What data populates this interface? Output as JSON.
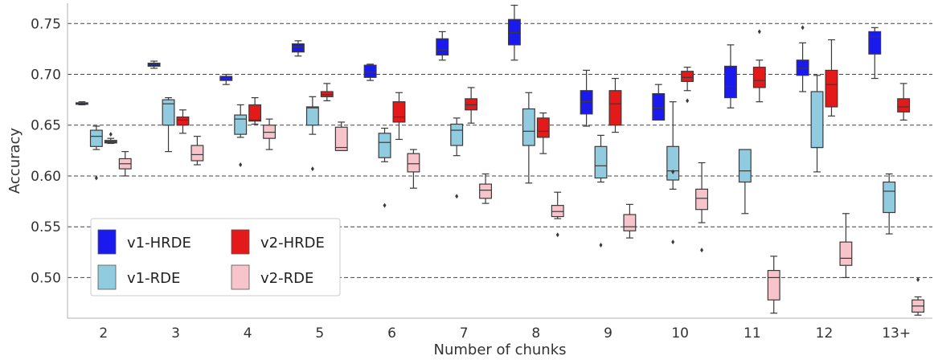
{
  "chart_data": {
    "type": "box",
    "xlabel": "Number of chunks",
    "ylabel": "Accuracy",
    "ylim": [
      0.46,
      0.77
    ],
    "yticks": [
      0.5,
      0.55,
      0.6,
      0.65,
      0.7,
      0.75
    ],
    "grid": "horizontal dashed",
    "legend_position": "lower-left",
    "categories": [
      "2",
      "3",
      "4",
      "5",
      "6",
      "7",
      "8",
      "9",
      "10",
      "11",
      "12",
      "13+"
    ],
    "series": [
      {
        "name": "v1-HRDE",
        "color": "#1a1aee",
        "boxes": [
          {
            "whislo": 0.67,
            "q1": 0.6705,
            "med": 0.671,
            "q3": 0.672,
            "whishi": 0.673,
            "fliers": []
          },
          {
            "whislo": 0.706,
            "q1": 0.708,
            "med": 0.71,
            "q3": 0.711,
            "whishi": 0.713,
            "fliers": []
          },
          {
            "whislo": 0.69,
            "q1": 0.694,
            "med": 0.696,
            "q3": 0.698,
            "whishi": 0.7,
            "fliers": []
          },
          {
            "whislo": 0.718,
            "q1": 0.722,
            "med": 0.727,
            "q3": 0.73,
            "whishi": 0.733,
            "fliers": []
          },
          {
            "whislo": 0.694,
            "q1": 0.697,
            "med": 0.702,
            "q3": 0.709,
            "whishi": 0.71,
            "fliers": []
          },
          {
            "whislo": 0.714,
            "q1": 0.719,
            "med": 0.724,
            "q3": 0.735,
            "whishi": 0.742,
            "fliers": []
          },
          {
            "whislo": 0.714,
            "q1": 0.729,
            "med": 0.741,
            "q3": 0.754,
            "whishi": 0.768,
            "fliers": []
          },
          {
            "whislo": 0.649,
            "q1": 0.661,
            "med": 0.673,
            "q3": 0.684,
            "whishi": 0.704,
            "fliers": []
          },
          {
            "whislo": 0.655,
            "q1": 0.655,
            "med": 0.667,
            "q3": 0.681,
            "whishi": 0.69,
            "fliers": []
          },
          {
            "whislo": 0.667,
            "q1": 0.677,
            "med": 0.688,
            "q3": 0.708,
            "whishi": 0.729,
            "fliers": []
          },
          {
            "whislo": 0.683,
            "q1": 0.699,
            "med": 0.706,
            "q3": 0.714,
            "whishi": 0.731,
            "fliers": [
              0.746
            ]
          },
          {
            "whislo": 0.696,
            "q1": 0.72,
            "med": 0.737,
            "q3": 0.742,
            "whishi": 0.746,
            "fliers": []
          }
        ]
      },
      {
        "name": "v1-RDE",
        "color": "#91cbe0",
        "boxes": [
          {
            "whislo": 0.626,
            "q1": 0.629,
            "med": 0.639,
            "q3": 0.645,
            "whishi": 0.649,
            "fliers": [
              0.598
            ]
          },
          {
            "whislo": 0.624,
            "q1": 0.65,
            "med": 0.671,
            "q3": 0.675,
            "whishi": 0.677,
            "fliers": []
          },
          {
            "whislo": 0.638,
            "q1": 0.641,
            "med": 0.656,
            "q3": 0.66,
            "whishi": 0.67,
            "fliers": [
              0.611
            ]
          },
          {
            "whislo": 0.641,
            "q1": 0.65,
            "med": 0.667,
            "q3": 0.668,
            "whishi": 0.678,
            "fliers": [
              0.607
            ]
          },
          {
            "whislo": 0.614,
            "q1": 0.618,
            "med": 0.633,
            "q3": 0.642,
            "whishi": 0.647,
            "fliers": [
              0.571
            ]
          },
          {
            "whislo": 0.62,
            "q1": 0.63,
            "med": 0.645,
            "q3": 0.651,
            "whishi": 0.657,
            "fliers": [
              0.58
            ]
          },
          {
            "whislo": 0.593,
            "q1": 0.63,
            "med": 0.644,
            "q3": 0.666,
            "whishi": 0.682,
            "fliers": []
          },
          {
            "whislo": 0.594,
            "q1": 0.598,
            "med": 0.61,
            "q3": 0.629,
            "whishi": 0.64,
            "fliers": [
              0.532
            ]
          },
          {
            "whislo": 0.587,
            "q1": 0.596,
            "med": 0.605,
            "q3": 0.629,
            "whishi": 0.673,
            "fliers": [
              0.535,
              0.604
            ]
          },
          {
            "whislo": 0.563,
            "q1": 0.594,
            "med": 0.605,
            "q3": 0.626,
            "whishi": 0.626,
            "fliers": []
          },
          {
            "whislo": 0.604,
            "q1": 0.628,
            "med": 0.628,
            "q3": 0.683,
            "whishi": 0.699,
            "fliers": []
          },
          {
            "whislo": 0.543,
            "q1": 0.564,
            "med": 0.585,
            "q3": 0.594,
            "whishi": 0.602,
            "fliers": []
          }
        ]
      },
      {
        "name": "v2-HRDE",
        "color": "#e41a1a",
        "boxes": [
          {
            "whislo": 0.632,
            "q1": 0.6325,
            "med": 0.6335,
            "q3": 0.635,
            "whishi": 0.637,
            "fliers": [
              0.641
            ]
          },
          {
            "whislo": 0.642,
            "q1": 0.65,
            "med": 0.655,
            "q3": 0.658,
            "whishi": 0.665,
            "fliers": []
          },
          {
            "whislo": 0.651,
            "q1": 0.654,
            "med": 0.655,
            "q3": 0.67,
            "whishi": 0.677,
            "fliers": []
          },
          {
            "whislo": 0.674,
            "q1": 0.678,
            "med": 0.68,
            "q3": 0.683,
            "whishi": 0.691,
            "fliers": []
          },
          {
            "whislo": 0.636,
            "q1": 0.653,
            "med": 0.658,
            "q3": 0.673,
            "whishi": 0.682,
            "fliers": []
          },
          {
            "whislo": 0.652,
            "q1": 0.665,
            "med": 0.67,
            "q3": 0.676,
            "whishi": 0.687,
            "fliers": []
          },
          {
            "whislo": 0.622,
            "q1": 0.638,
            "med": 0.644,
            "q3": 0.657,
            "whishi": 0.662,
            "fliers": []
          },
          {
            "whislo": 0.643,
            "q1": 0.65,
            "med": 0.671,
            "q3": 0.684,
            "whishi": 0.696,
            "fliers": []
          },
          {
            "whislo": 0.684,
            "q1": 0.693,
            "med": 0.697,
            "q3": 0.703,
            "whishi": 0.707,
            "fliers": [
              0.674
            ]
          },
          {
            "whislo": 0.673,
            "q1": 0.687,
            "med": 0.694,
            "q3": 0.707,
            "whishi": 0.714,
            "fliers": [
              0.742
            ]
          },
          {
            "whislo": 0.659,
            "q1": 0.668,
            "med": 0.69,
            "q3": 0.704,
            "whishi": 0.734,
            "fliers": []
          },
          {
            "whislo": 0.655,
            "q1": 0.663,
            "med": 0.668,
            "q3": 0.676,
            "whishi": 0.691,
            "fliers": []
          }
        ]
      },
      {
        "name": "v2-RDE",
        "color": "#f7c4cc",
        "boxes": [
          {
            "whislo": 0.6,
            "q1": 0.607,
            "med": 0.612,
            "q3": 0.617,
            "whishi": 0.624,
            "fliers": []
          },
          {
            "whislo": 0.611,
            "q1": 0.615,
            "med": 0.621,
            "q3": 0.63,
            "whishi": 0.639,
            "fliers": []
          },
          {
            "whislo": 0.626,
            "q1": 0.637,
            "med": 0.643,
            "q3": 0.65,
            "whishi": 0.656,
            "fliers": []
          },
          {
            "whislo": 0.625,
            "q1": 0.625,
            "med": 0.628,
            "q3": 0.648,
            "whishi": 0.653,
            "fliers": []
          },
          {
            "whislo": 0.588,
            "q1": 0.604,
            "med": 0.612,
            "q3": 0.622,
            "whishi": 0.626,
            "fliers": []
          },
          {
            "whislo": 0.573,
            "q1": 0.578,
            "med": 0.586,
            "q3": 0.592,
            "whishi": 0.602,
            "fliers": []
          },
          {
            "whislo": 0.558,
            "q1": 0.56,
            "med": 0.565,
            "q3": 0.571,
            "whishi": 0.584,
            "fliers": [
              0.542
            ]
          },
          {
            "whislo": 0.539,
            "q1": 0.546,
            "med": 0.55,
            "q3": 0.562,
            "whishi": 0.572,
            "fliers": []
          },
          {
            "whislo": 0.554,
            "q1": 0.567,
            "med": 0.578,
            "q3": 0.587,
            "whishi": 0.613,
            "fliers": [
              0.527
            ]
          },
          {
            "whislo": 0.465,
            "q1": 0.478,
            "med": 0.5,
            "q3": 0.507,
            "whishi": 0.521,
            "fliers": []
          },
          {
            "whislo": 0.5,
            "q1": 0.512,
            "med": 0.519,
            "q3": 0.535,
            "whishi": 0.563,
            "fliers": []
          },
          {
            "whislo": 0.463,
            "q1": 0.466,
            "med": 0.472,
            "q3": 0.478,
            "whishi": 0.481,
            "fliers": [
              0.498
            ]
          }
        ]
      }
    ]
  }
}
